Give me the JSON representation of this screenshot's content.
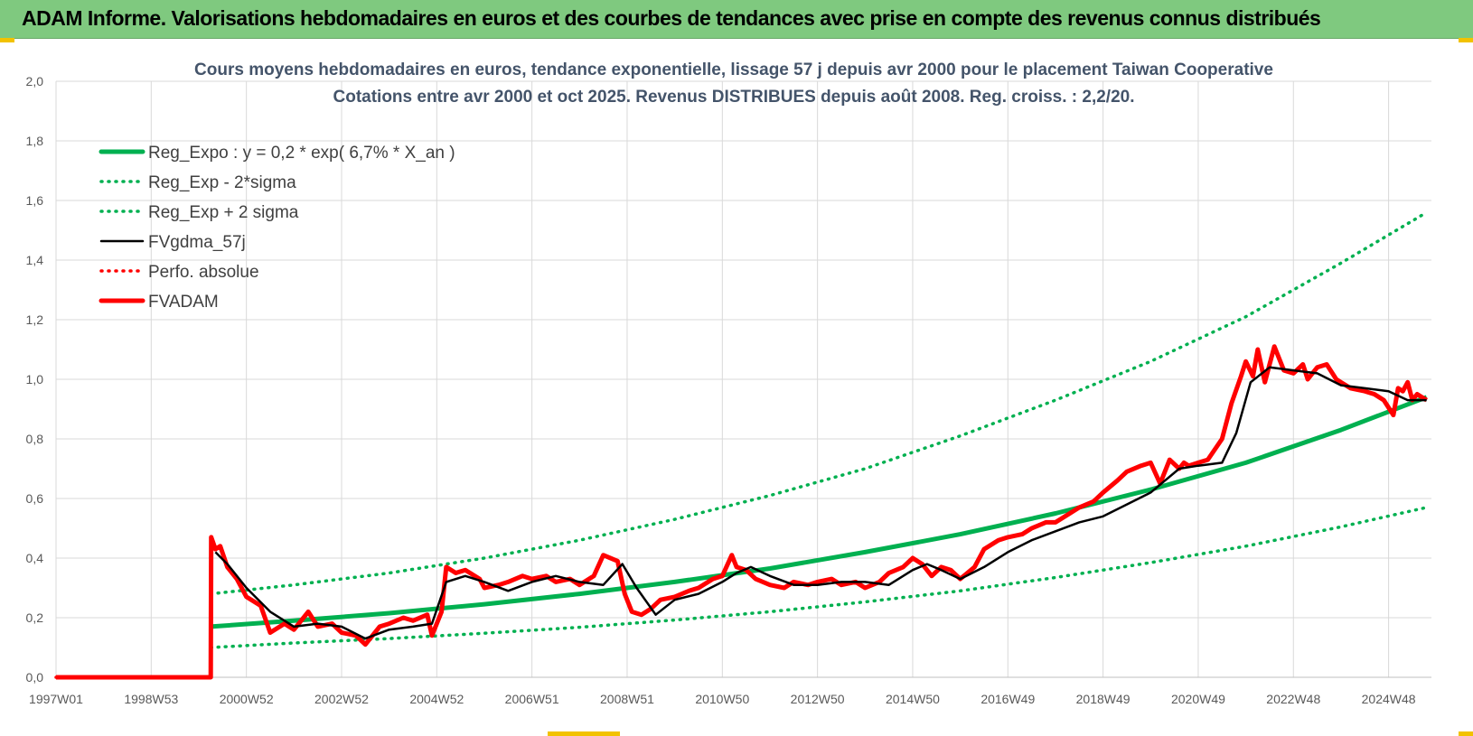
{
  "banner": {
    "title": "ADAM Informe. Valorisations hebdomadaires en euros et des courbes de tendances avec prise en compte des revenus connus distribués"
  },
  "colors": {
    "banner_bg": "#7fc97f",
    "accent_corner": "#f2c200",
    "reg_expo": "#00b050",
    "fv_adam": "#ff0000",
    "fvgdma": "#000000",
    "grid": "#d9d9d9",
    "title_text": "#44546a"
  },
  "chart_data": {
    "type": "line",
    "title": "Cours moyens hebdomadaires en euros, tendance exponentielle, lissage 57 j depuis avr 2000 pour le placement Taiwan Cooperative",
    "subtitle": "Cotations entre avr 2000 et oct 2025.  Revenus DISTRIBUES depuis août 2008. Reg. croiss. : 2,2/20.",
    "xlabel": "",
    "ylabel": "",
    "x_range": [
      1997.0,
      2025.9
    ],
    "ylim": [
      0,
      2.0
    ],
    "y_ticks": [
      "0,0",
      "0,2",
      "0,4",
      "0,6",
      "0,8",
      "1,0",
      "1,2",
      "1,4",
      "1,6",
      "1,8",
      "2,0"
    ],
    "x_tick_labels": [
      {
        "label": "1997W01",
        "x": 1997.0
      },
      {
        "label": "1998W53",
        "x": 1999.0
      },
      {
        "label": "2000W52",
        "x": 2001.0
      },
      {
        "label": "2002W52",
        "x": 2003.0
      },
      {
        "label": "2004W52",
        "x": 2005.0
      },
      {
        "label": "2006W51",
        "x": 2007.0
      },
      {
        "label": "2008W51",
        "x": 2009.0
      },
      {
        "label": "2010W50",
        "x": 2011.0
      },
      {
        "label": "2012W50",
        "x": 2013.0
      },
      {
        "label": "2014W50",
        "x": 2015.0
      },
      {
        "label": "2016W49",
        "x": 2017.0
      },
      {
        "label": "2018W49",
        "x": 2019.0
      },
      {
        "label": "2020W49",
        "x": 2021.0
      },
      {
        "label": "2022W48",
        "x": 2023.0
      },
      {
        "label": "2024W48",
        "x": 2025.0
      }
    ],
    "grid": true,
    "legend_position": "top-left",
    "series": [
      {
        "name": "Reg_Expo : y = 0,2 * exp( 6,7% *  X_an )",
        "style": "solid-thick",
        "color": "#00b050",
        "x": [
          2000.25,
          2002,
          2004,
          2006,
          2008,
          2010,
          2012,
          2014,
          2016,
          2018,
          2020,
          2022,
          2024,
          2025.8
        ],
        "values": [
          0.17,
          0.19,
          0.215,
          0.245,
          0.28,
          0.32,
          0.365,
          0.42,
          0.48,
          0.55,
          0.63,
          0.72,
          0.83,
          0.94
        ]
      },
      {
        "name": "Reg_Exp - 2*sigma",
        "style": "dotted",
        "color": "#00b050",
        "x": [
          2000.25,
          2002,
          2004,
          2006,
          2008,
          2010,
          2012,
          2014,
          2016,
          2018,
          2020,
          2022,
          2024,
          2025.8
        ],
        "values": [
          0.1,
          0.115,
          0.13,
          0.148,
          0.168,
          0.192,
          0.22,
          0.253,
          0.29,
          0.335,
          0.385,
          0.44,
          0.505,
          0.57
        ]
      },
      {
        "name": "Reg_Exp + 2 sigma",
        "style": "dotted",
        "color": "#00b050",
        "x": [
          2000.25,
          2002,
          2004,
          2006,
          2008,
          2010,
          2012,
          2014,
          2016,
          2018,
          2020,
          2022,
          2024,
          2025.8
        ],
        "values": [
          0.28,
          0.31,
          0.35,
          0.4,
          0.46,
          0.53,
          0.61,
          0.7,
          0.81,
          0.93,
          1.06,
          1.21,
          1.39,
          1.56
        ]
      },
      {
        "name": "FVgdma_57j",
        "style": "solid",
        "color": "#000000",
        "x": [
          2000.35,
          2000.6,
          2001.0,
          2001.5,
          2002.0,
          2002.5,
          2003.0,
          2003.5,
          2004.0,
          2004.5,
          2004.9,
          2005.2,
          2005.6,
          2006.0,
          2006.5,
          2007.0,
          2007.5,
          2008.0,
          2008.5,
          2008.9,
          2009.2,
          2009.6,
          2010.0,
          2010.5,
          2011.0,
          2011.3,
          2011.6,
          2012.0,
          2012.5,
          2013.0,
          2013.5,
          2014.0,
          2014.5,
          2015.0,
          2015.3,
          2015.6,
          2016.0,
          2016.5,
          2017.0,
          2017.5,
          2018.0,
          2018.5,
          2019.0,
          2019.5,
          2020.0,
          2020.3,
          2020.6,
          2021.0,
          2021.5,
          2021.8,
          2022.1,
          2022.5,
          2023.0,
          2023.5,
          2024.0,
          2024.5,
          2025.0,
          2025.4,
          2025.8
        ],
        "values": [
          0.42,
          0.38,
          0.3,
          0.22,
          0.17,
          0.18,
          0.17,
          0.13,
          0.16,
          0.17,
          0.18,
          0.32,
          0.34,
          0.32,
          0.29,
          0.32,
          0.34,
          0.32,
          0.31,
          0.38,
          0.3,
          0.21,
          0.26,
          0.28,
          0.32,
          0.35,
          0.37,
          0.34,
          0.31,
          0.31,
          0.32,
          0.32,
          0.31,
          0.36,
          0.38,
          0.36,
          0.33,
          0.37,
          0.42,
          0.46,
          0.49,
          0.52,
          0.54,
          0.58,
          0.62,
          0.66,
          0.7,
          0.71,
          0.72,
          0.82,
          0.99,
          1.04,
          1.03,
          1.02,
          0.98,
          0.97,
          0.96,
          0.93,
          0.93
        ]
      },
      {
        "name": "Perfo. absolue",
        "style": "dotted",
        "color": "#ff0000",
        "x": [
          1997.0,
          2000.25
        ],
        "values": [
          0.0,
          0.0
        ]
      },
      {
        "name": "FVADAM",
        "style": "solid-thick",
        "color": "#ff0000",
        "x": [
          1997.0,
          2000.25,
          2000.26,
          2000.35,
          2000.45,
          2000.6,
          2000.8,
          2001.0,
          2001.3,
          2001.5,
          2001.8,
          2002.0,
          2002.3,
          2002.5,
          2002.8,
          2003.0,
          2003.3,
          2003.5,
          2003.8,
          2004.0,
          2004.3,
          2004.5,
          2004.8,
          2004.9,
          2005.1,
          2005.2,
          2005.4,
          2005.6,
          2005.9,
          2006.0,
          2006.3,
          2006.5,
          2006.8,
          2007.0,
          2007.3,
          2007.5,
          2007.8,
          2008.0,
          2008.3,
          2008.5,
          2008.8,
          2008.95,
          2009.1,
          2009.3,
          2009.5,
          2009.7,
          2010.0,
          2010.3,
          2010.5,
          2010.8,
          2011.0,
          2011.2,
          2011.3,
          2011.5,
          2011.7,
          2012.0,
          2012.3,
          2012.5,
          2012.8,
          2013.0,
          2013.3,
          2013.5,
          2013.8,
          2014.0,
          2014.3,
          2014.5,
          2014.8,
          2015.0,
          2015.2,
          2015.4,
          2015.6,
          2015.8,
          2016.0,
          2016.3,
          2016.5,
          2016.8,
          2017.0,
          2017.3,
          2017.5,
          2017.8,
          2018.0,
          2018.3,
          2018.5,
          2018.8,
          2019.0,
          2019.3,
          2019.5,
          2019.8,
          2020.0,
          2020.2,
          2020.4,
          2020.6,
          2020.7,
          2020.8,
          2021.0,
          2021.2,
          2021.5,
          2021.7,
          2021.9,
          2022.0,
          2022.15,
          2022.25,
          2022.4,
          2022.5,
          2022.6,
          2022.8,
          2023.0,
          2023.2,
          2023.3,
          2023.5,
          2023.7,
          2023.9,
          2024.0,
          2024.2,
          2024.5,
          2024.7,
          2024.9,
          2025.1,
          2025.2,
          2025.3,
          2025.4,
          2025.5,
          2025.6,
          2025.8
        ],
        "values": [
          0.0,
          0.0,
          0.47,
          0.43,
          0.44,
          0.37,
          0.33,
          0.27,
          0.24,
          0.15,
          0.18,
          0.16,
          0.22,
          0.17,
          0.18,
          0.15,
          0.14,
          0.11,
          0.17,
          0.18,
          0.2,
          0.19,
          0.21,
          0.14,
          0.22,
          0.37,
          0.35,
          0.36,
          0.33,
          0.3,
          0.31,
          0.32,
          0.34,
          0.33,
          0.34,
          0.32,
          0.33,
          0.31,
          0.34,
          0.41,
          0.39,
          0.28,
          0.22,
          0.21,
          0.23,
          0.26,
          0.27,
          0.29,
          0.3,
          0.33,
          0.34,
          0.41,
          0.37,
          0.36,
          0.33,
          0.31,
          0.3,
          0.32,
          0.31,
          0.32,
          0.33,
          0.31,
          0.32,
          0.3,
          0.32,
          0.35,
          0.37,
          0.4,
          0.38,
          0.34,
          0.37,
          0.36,
          0.33,
          0.37,
          0.43,
          0.46,
          0.47,
          0.48,
          0.5,
          0.52,
          0.52,
          0.55,
          0.57,
          0.59,
          0.62,
          0.66,
          0.69,
          0.71,
          0.72,
          0.65,
          0.73,
          0.7,
          0.72,
          0.71,
          0.72,
          0.73,
          0.8,
          0.92,
          1.01,
          1.06,
          1.01,
          1.1,
          0.99,
          1.05,
          1.11,
          1.03,
          1.02,
          1.05,
          1.0,
          1.04,
          1.05,
          1.0,
          0.99,
          0.97,
          0.96,
          0.95,
          0.93,
          0.88,
          0.97,
          0.96,
          0.99,
          0.93,
          0.95,
          0.93
        ]
      }
    ]
  }
}
